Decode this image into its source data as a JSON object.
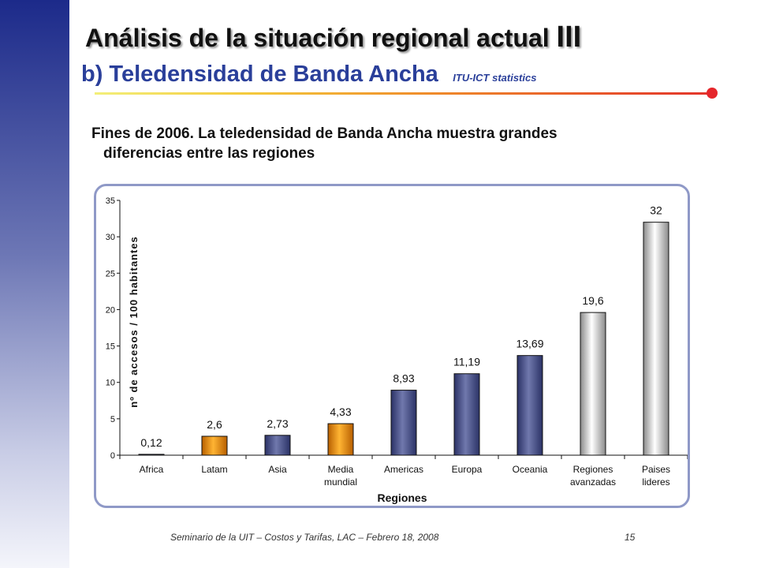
{
  "slide": {
    "title": "Análisis de la situación regional actual",
    "title_roman": "III",
    "subtitle_main": "b) Teledensidad  de Banda Ancha",
    "subtitle_source": "ITU-ICT statistics",
    "description_line1": "Fines de 2006. La teledensidad de Banda Ancha muestra grandes",
    "description_line2": "diferencias entre las regiones",
    "footer": "Seminario de la UIT – Costos y Tarifas, LAC – Febrero 18, 2008",
    "page_number": "15"
  },
  "colors": {
    "band_top": "#1c2a8a",
    "title_blue": "#2a3f9a",
    "accent_red": "#e5262b",
    "bar_blue": "#4d5590",
    "bar_orange": "#ef9410",
    "bar_gray": "#d8d8d8"
  },
  "chart_data": {
    "type": "bar",
    "xlabel": "Regiones",
    "ylabel": "nº de accesos / 100 habitantes",
    "ylim": [
      0,
      35
    ],
    "yticks": [
      0,
      5,
      10,
      15,
      20,
      25,
      30,
      35
    ],
    "ytick_labels": [
      "0",
      "5",
      "10",
      "15",
      "20",
      "25",
      "30",
      "35"
    ],
    "grid": false,
    "categories": [
      [
        "Africa"
      ],
      [
        "Latam"
      ],
      [
        "Asia"
      ],
      [
        "Media",
        "mundial"
      ],
      [
        "Americas"
      ],
      [
        "Europa"
      ],
      [
        "Oceania"
      ],
      [
        "Regiones",
        "avanzadas"
      ],
      [
        "Paises",
        "lideres"
      ]
    ],
    "values": [
      0.12,
      2.6,
      2.73,
      4.33,
      8.93,
      11.19,
      13.69,
      19.6,
      32
    ],
    "data_labels": [
      "0,12",
      "2,6",
      "2,73",
      "4,33",
      "8,93",
      "11,19",
      "13,69",
      "19,6",
      "32"
    ],
    "bar_colors": [
      "blue",
      "orange",
      "blue",
      "orange",
      "blue",
      "blue",
      "blue",
      "gray",
      "gray"
    ]
  }
}
